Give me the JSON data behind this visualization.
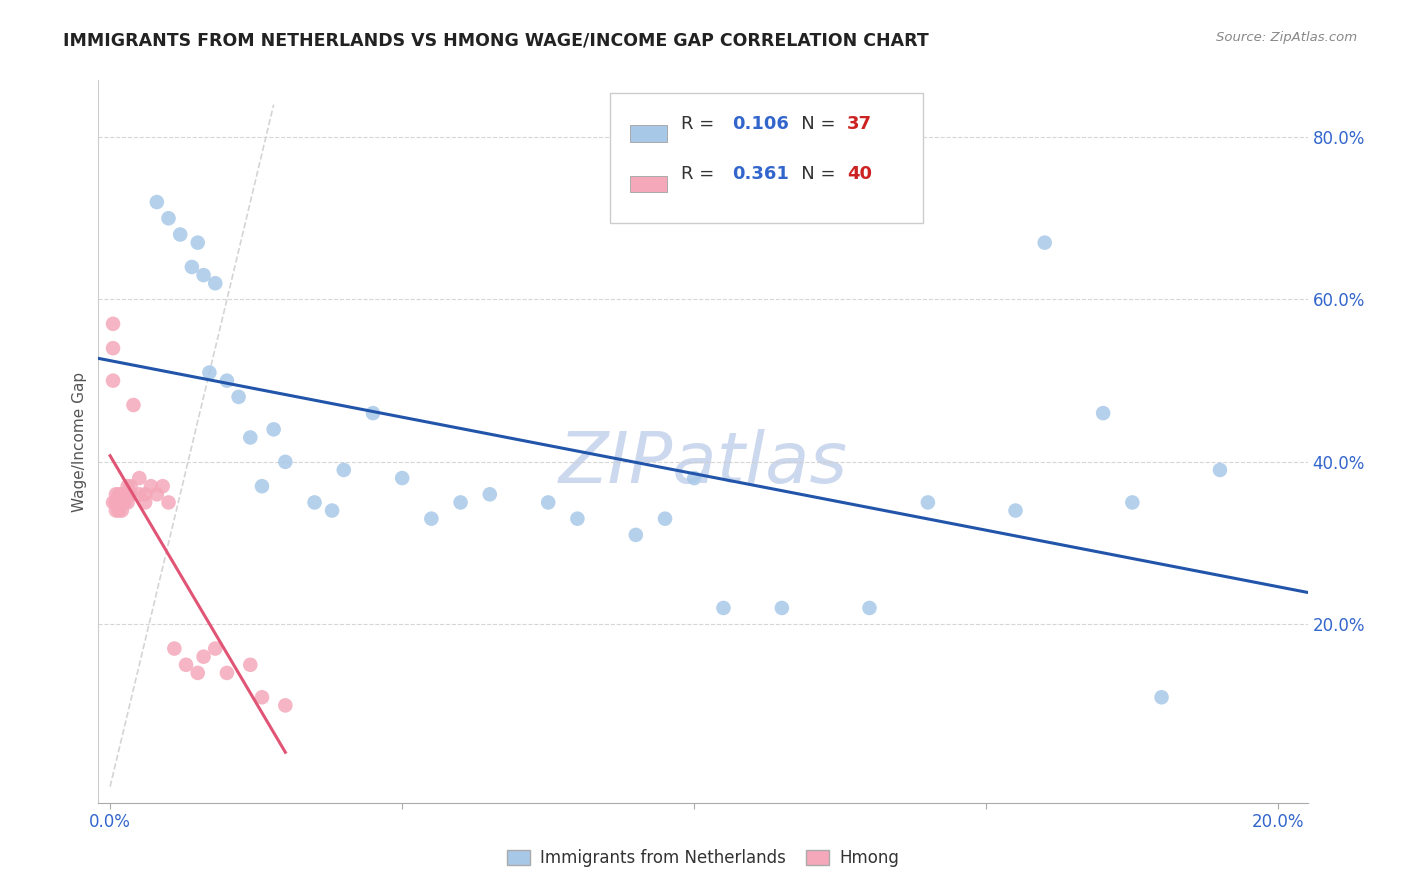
{
  "title": "IMMIGRANTS FROM NETHERLANDS VS HMONG WAGE/INCOME GAP CORRELATION CHART",
  "source": "Source: ZipAtlas.com",
  "ylabel": "Wage/Income Gap",
  "xmin": -0.002,
  "xmax": 0.205,
  "ymin": -0.02,
  "ymax": 0.87,
  "x_ticks": [
    0.0,
    0.05,
    0.1,
    0.15,
    0.2
  ],
  "x_tick_labels": [
    "0.0%",
    "",
    "",
    "",
    "20.0%"
  ],
  "y_ticks": [
    0.2,
    0.4,
    0.6,
    0.8
  ],
  "y_tick_labels": [
    "20.0%",
    "40.0%",
    "60.0%",
    "80.0%"
  ],
  "netherlands_R": 0.106,
  "netherlands_N": 37,
  "hmong_R": 0.361,
  "hmong_N": 40,
  "netherlands_color": "#a8c8e8",
  "hmong_color": "#f4a8ba",
  "netherlands_line_color": "#2255aa",
  "hmong_line_color": "#e05575",
  "diagonal_color": "#d0d0d0",
  "netherlands_x": [
    0.008,
    0.01,
    0.012,
    0.014,
    0.015,
    0.016,
    0.017,
    0.018,
    0.02,
    0.022,
    0.024,
    0.026,
    0.028,
    0.03,
    0.035,
    0.038,
    0.04,
    0.045,
    0.05,
    0.055,
    0.06,
    0.065,
    0.075,
    0.08,
    0.09,
    0.095,
    0.1,
    0.105,
    0.115,
    0.13,
    0.14,
    0.155,
    0.16,
    0.17,
    0.175,
    0.18,
    0.19
  ],
  "netherlands_y": [
    0.72,
    0.7,
    0.68,
    0.64,
    0.67,
    0.63,
    0.51,
    0.62,
    0.5,
    0.48,
    0.43,
    0.37,
    0.44,
    0.4,
    0.35,
    0.34,
    0.39,
    0.46,
    0.38,
    0.33,
    0.35,
    0.36,
    0.35,
    0.33,
    0.31,
    0.33,
    0.38,
    0.22,
    0.22,
    0.22,
    0.35,
    0.34,
    0.67,
    0.46,
    0.35,
    0.11,
    0.39
  ],
  "hmong_x": [
    0.0005,
    0.0005,
    0.0005,
    0.0005,
    0.001,
    0.001,
    0.001,
    0.001,
    0.0015,
    0.0015,
    0.0015,
    0.0015,
    0.002,
    0.002,
    0.002,
    0.0025,
    0.0025,
    0.003,
    0.003,
    0.003,
    0.0035,
    0.0035,
    0.004,
    0.005,
    0.005,
    0.006,
    0.006,
    0.007,
    0.008,
    0.009,
    0.01,
    0.011,
    0.013,
    0.015,
    0.016,
    0.018,
    0.02,
    0.024,
    0.026,
    0.03
  ],
  "hmong_y": [
    0.57,
    0.54,
    0.5,
    0.35,
    0.35,
    0.36,
    0.35,
    0.34,
    0.35,
    0.36,
    0.35,
    0.34,
    0.36,
    0.35,
    0.34,
    0.36,
    0.35,
    0.36,
    0.37,
    0.35,
    0.37,
    0.36,
    0.47,
    0.38,
    0.36,
    0.35,
    0.36,
    0.37,
    0.36,
    0.37,
    0.35,
    0.17,
    0.15,
    0.14,
    0.16,
    0.17,
    0.14,
    0.15,
    0.11,
    0.1
  ],
  "watermark": "ZIPatlas",
  "watermark_color": "#ccd8ee"
}
